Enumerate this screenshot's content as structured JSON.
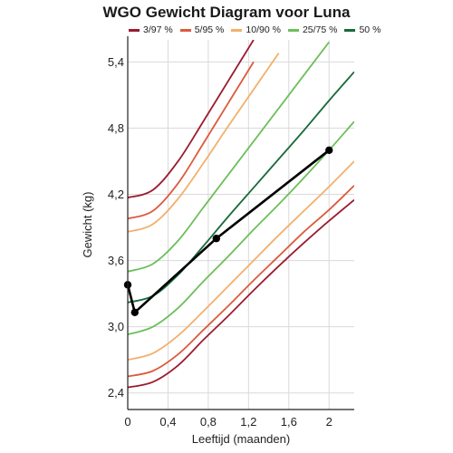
{
  "chart_data": {
    "type": "line",
    "title": "WGO Gewicht Diagram voor Luna",
    "xlabel": "Leeftijd (maanden)",
    "ylabel": "Gewicht (kg)",
    "xlim": [
      0,
      2.25
    ],
    "ylim": [
      2.25,
      5.6
    ],
    "x_ticks": [
      0,
      0.4,
      0.8,
      1.2,
      1.6,
      2
    ],
    "x_tick_labels": [
      "0",
      "0,4",
      "0,8",
      "1,2",
      "1,6",
      "2"
    ],
    "y_ticks": [
      2.4,
      3.0,
      3.6,
      4.2,
      4.8,
      5.4
    ],
    "y_tick_labels": [
      "2,4",
      "3,0",
      "3,6",
      "4,2",
      "4,8",
      "5,4"
    ],
    "grid": true,
    "legend_position": "top",
    "legend": [
      {
        "label": "3/97 %",
        "color": "#9b1b30"
      },
      {
        "label": "5/95 %",
        "color": "#dd5a3e"
      },
      {
        "label": "10/90 %",
        "color": "#f2b06b"
      },
      {
        "label": "25/75 %",
        "color": "#6cbf5a"
      },
      {
        "label": "50 %",
        "color": "#176b3a"
      }
    ],
    "curves": [
      {
        "group": "3/97 %",
        "color": "#9b1b30",
        "x": [
          0,
          0.25,
          0.5,
          0.75,
          1,
          1.25,
          1.5,
          1.75,
          2,
          2.25
        ],
        "y": [
          2.45,
          2.5,
          2.65,
          2.88,
          3.1,
          3.33,
          3.55,
          3.76,
          3.96,
          4.15
        ]
      },
      {
        "group": "5/95 %",
        "color": "#dd5a3e",
        "x": [
          0,
          0.25,
          0.5,
          0.75,
          1,
          1.25,
          1.5,
          1.75,
          2,
          2.25
        ],
        "y": [
          2.55,
          2.6,
          2.75,
          2.97,
          3.19,
          3.42,
          3.64,
          3.86,
          4.06,
          4.28
        ]
      },
      {
        "group": "10/90 %",
        "color": "#f2b06b",
        "x": [
          0,
          0.25,
          0.5,
          0.75,
          1,
          1.25,
          1.5,
          1.75,
          2,
          2.25
        ],
        "y": [
          2.7,
          2.76,
          2.92,
          3.14,
          3.37,
          3.6,
          3.83,
          4.05,
          4.27,
          4.5
        ]
      },
      {
        "group": "25/75 %",
        "color": "#6cbf5a",
        "x": [
          0,
          0.25,
          0.5,
          0.75,
          1,
          1.25,
          1.5,
          1.75,
          2,
          2.25
        ],
        "y": [
          2.93,
          3.0,
          3.17,
          3.41,
          3.64,
          3.88,
          4.11,
          4.35,
          4.6,
          4.86
        ]
      },
      {
        "group": "50 %",
        "color": "#176b3a",
        "x": [
          0,
          0.25,
          0.5,
          0.75,
          1,
          1.25,
          1.5,
          1.75,
          2,
          2.25
        ],
        "y": [
          3.22,
          3.28,
          3.47,
          3.73,
          4.0,
          4.26,
          4.52,
          4.78,
          5.05,
          5.31
        ]
      },
      {
        "group": "25/75 %",
        "color": "#6cbf5a",
        "x": [
          0,
          0.25,
          0.5,
          0.75,
          1,
          1.25,
          1.5,
          1.75,
          2
        ],
        "y": [
          3.5,
          3.57,
          3.78,
          4.08,
          4.38,
          4.68,
          4.98,
          5.28,
          5.58
        ]
      },
      {
        "group": "10/90 %",
        "color": "#f2b06b",
        "x": [
          0,
          0.25,
          0.5,
          0.75,
          1,
          1.25,
          1.5
        ],
        "y": [
          3.86,
          3.93,
          4.16,
          4.48,
          4.82,
          5.15,
          5.48
        ]
      },
      {
        "group": "5/95 %",
        "color": "#dd5a3e",
        "x": [
          0,
          0.25,
          0.5,
          0.75,
          1,
          1.25
        ],
        "y": [
          3.98,
          4.05,
          4.3,
          4.66,
          5.03,
          5.4
        ]
      },
      {
        "group": "3/97 %",
        "color": "#9b1b30",
        "x": [
          0,
          0.25,
          0.5,
          0.75,
          1,
          1.25
        ],
        "y": [
          4.17,
          4.24,
          4.5,
          4.86,
          5.23,
          5.6
        ]
      }
    ],
    "series": [
      {
        "color": "#000000",
        "x": [
          0,
          0.07,
          0.88,
          2.0
        ],
        "y": [
          3.38,
          3.13,
          3.8,
          4.6
        ]
      }
    ]
  }
}
